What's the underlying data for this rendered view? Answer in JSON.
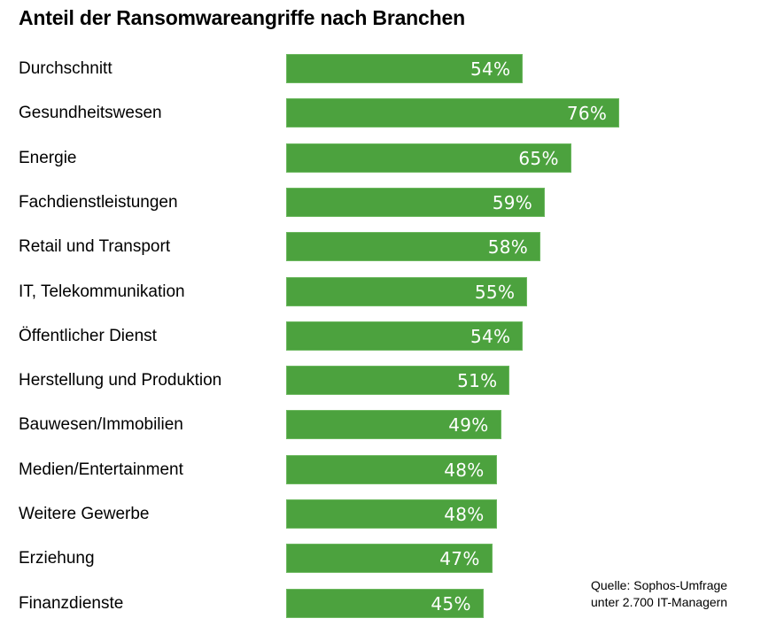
{
  "chart_data": {
    "type": "bar",
    "orientation": "horizontal",
    "title": "Anteil der Ransomwareangriffe nach Branchen",
    "xlabel": "",
    "ylabel": "",
    "unit": "%",
    "grid": false,
    "categories": [
      "Durchschnitt",
      "Gesundheitswesen",
      "Energie",
      "Fachdienstleistungen",
      "Retail und Transport",
      "IT, Telekommunikation",
      "Öffentlicher Dienst",
      "Herstellung und Produktion",
      "Bauwesen/Immobilien",
      "Medien/Entertainment",
      "Weitere Gewerbe",
      "Erziehung",
      "Finanzdienste"
    ],
    "values": [
      54,
      76,
      65,
      59,
      58,
      55,
      54,
      51,
      49,
      48,
      48,
      47,
      45
    ],
    "value_labels": [
      "54%",
      "76%",
      "65%",
      "59%",
      "58%",
      "55%",
      "54%",
      "51%",
      "49%",
      "48%",
      "48%",
      "47%",
      "45%"
    ],
    "bar_color": "#4ca23e",
    "value_label_color": "#ffffff",
    "source_note": [
      "Quelle: Sophos-Umfrage",
      "unter 2.700 IT-Managern"
    ]
  }
}
